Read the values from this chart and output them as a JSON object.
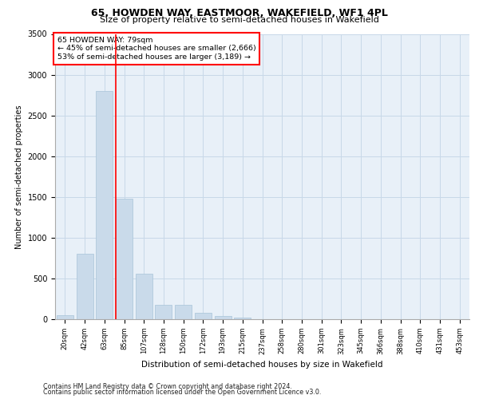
{
  "title1": "65, HOWDEN WAY, EASTMOOR, WAKEFIELD, WF1 4PL",
  "title2": "Size of property relative to semi-detached houses in Wakefield",
  "xlabel": "Distribution of semi-detached houses by size in Wakefield",
  "ylabel": "Number of semi-detached properties",
  "footnote1": "Contains HM Land Registry data © Crown copyright and database right 2024.",
  "footnote2": "Contains public sector information licensed under the Open Government Licence v3.0.",
  "annotation_line1": "65 HOWDEN WAY: 79sqm",
  "annotation_line2": "← 45% of semi-detached houses are smaller (2,666)",
  "annotation_line3": "53% of semi-detached houses are larger (3,189) →",
  "bar_categories": [
    "20sqm",
    "42sqm",
    "63sqm",
    "85sqm",
    "107sqm",
    "128sqm",
    "150sqm",
    "172sqm",
    "193sqm",
    "215sqm",
    "237sqm",
    "258sqm",
    "280sqm",
    "301sqm",
    "323sqm",
    "345sqm",
    "366sqm",
    "388sqm",
    "410sqm",
    "431sqm",
    "453sqm"
  ],
  "bar_values": [
    50,
    800,
    2800,
    1480,
    560,
    175,
    175,
    80,
    40,
    20,
    0,
    0,
    0,
    0,
    0,
    0,
    0,
    0,
    0,
    0,
    0
  ],
  "bar_color": "#c9daea",
  "bar_edge_color": "#a8c4d8",
  "vline_x": 2.57,
  "vline_color": "red",
  "ylim": [
    0,
    3500
  ],
  "yticks": [
    0,
    500,
    1000,
    1500,
    2000,
    2500,
    3000,
    3500
  ],
  "grid_color": "#c8d8e8",
  "bg_color": "#e8f0f8",
  "annotation_box_color": "white",
  "annotation_box_edge": "red",
  "title1_fontsize": 9,
  "title2_fontsize": 8,
  "ylabel_fontsize": 7,
  "xlabel_fontsize": 7.5,
  "ytick_fontsize": 7,
  "xtick_fontsize": 6,
  "annotation_fontsize": 6.8,
  "footnote_fontsize": 5.8
}
